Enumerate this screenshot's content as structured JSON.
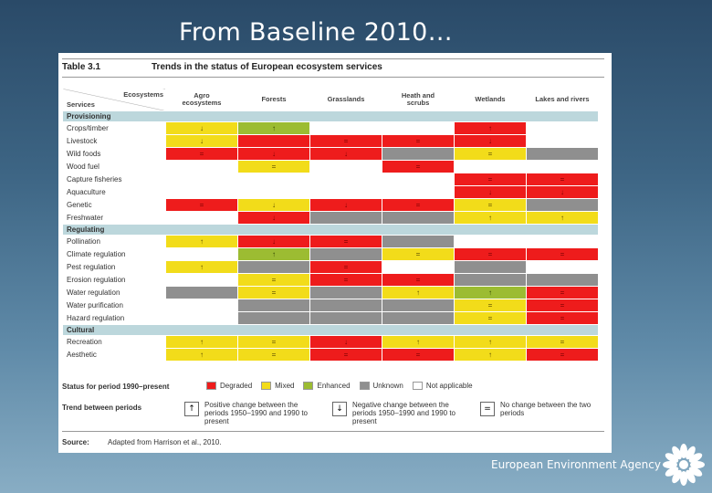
{
  "slide": {
    "title": "From Baseline 2010…",
    "agency": "European Environment Agency"
  },
  "table": {
    "number": "Table 3.1",
    "caption": "Trends in the status of European ecosystem services",
    "corner_top": "Ecosystems",
    "corner_bottom": "Services",
    "columns": [
      "Agro\necosystems",
      "Forests",
      "Grasslands",
      "Heath and\nscrubs",
      "Wetlands",
      "Lakes and rivers"
    ],
    "sections": [
      {
        "name": "Provisioning",
        "rows": [
          {
            "label": "Crops/timber",
            "cells": [
              [
                "m",
                "↓"
              ],
              [
                "e",
                "↑"
              ],
              [
                "n",
                ""
              ],
              [
                "n",
                ""
              ],
              [
                "d",
                "↑"
              ],
              [
                "n",
                ""
              ]
            ]
          },
          {
            "label": "Livestock",
            "cells": [
              [
                "m",
                "↓"
              ],
              [
                "d",
                ""
              ],
              [
                "d",
                "="
              ],
              [
                "d",
                "="
              ],
              [
                "d",
                "↓"
              ],
              [
                "n",
                ""
              ]
            ]
          },
          {
            "label": "Wild foods",
            "cells": [
              [
                "d",
                "="
              ],
              [
                "d",
                "↓"
              ],
              [
                "d",
                "↓"
              ],
              [
                "u",
                ""
              ],
              [
                "m",
                "="
              ],
              [
                "u",
                ""
              ]
            ]
          },
          {
            "label": "Wood fuel",
            "cells": [
              [
                "n",
                ""
              ],
              [
                "m",
                "="
              ],
              [
                "n",
                ""
              ],
              [
                "d",
                "="
              ],
              [
                "n",
                ""
              ],
              [
                "n",
                ""
              ]
            ]
          },
          {
            "label": "Capture fisheries",
            "cells": [
              [
                "n",
                ""
              ],
              [
                "n",
                ""
              ],
              [
                "n",
                ""
              ],
              [
                "n",
                ""
              ],
              [
                "d",
                "="
              ],
              [
                "d",
                "="
              ]
            ]
          },
          {
            "label": "Aquaculture",
            "cells": [
              [
                "n",
                ""
              ],
              [
                "n",
                ""
              ],
              [
                "n",
                ""
              ],
              [
                "n",
                ""
              ],
              [
                "d",
                "↓"
              ],
              [
                "d",
                "↓"
              ]
            ]
          },
          {
            "label": "Genetic",
            "cells": [
              [
                "d",
                "="
              ],
              [
                "m",
                "↓"
              ],
              [
                "d",
                "↓"
              ],
              [
                "d",
                "="
              ],
              [
                "m",
                "="
              ],
              [
                "u",
                ""
              ]
            ]
          },
          {
            "label": "Freshwater",
            "cells": [
              [
                "n",
                ""
              ],
              [
                "d",
                "↓"
              ],
              [
                "u",
                ""
              ],
              [
                "u",
                ""
              ],
              [
                "m",
                "↑"
              ],
              [
                "m",
                "↑"
              ]
            ]
          }
        ]
      },
      {
        "name": "Regulating",
        "rows": [
          {
            "label": "Pollination",
            "cells": [
              [
                "m",
                "↑"
              ],
              [
                "d",
                "↓"
              ],
              [
                "d",
                "="
              ],
              [
                "u",
                ""
              ],
              [
                "n",
                ""
              ],
              [
                "n",
                ""
              ]
            ]
          },
          {
            "label": "Climate regulation",
            "cells": [
              [
                "n",
                ""
              ],
              [
                "e",
                "↑"
              ],
              [
                "u",
                ""
              ],
              [
                "m",
                "="
              ],
              [
                "d",
                "="
              ],
              [
                "d",
                "="
              ]
            ]
          },
          {
            "label": "Pest regulation",
            "cells": [
              [
                "m",
                "↑"
              ],
              [
                "u",
                ""
              ],
              [
                "d",
                "="
              ],
              [
                "n",
                ""
              ],
              [
                "u",
                ""
              ],
              [
                "n",
                ""
              ]
            ]
          },
          {
            "label": "Erosion regulation",
            "cells": [
              [
                "n",
                ""
              ],
              [
                "m",
                "="
              ],
              [
                "d",
                "="
              ],
              [
                "d",
                "="
              ],
              [
                "u",
                ""
              ],
              [
                "u",
                ""
              ]
            ]
          },
          {
            "label": "Water regulation",
            "cells": [
              [
                "u",
                ""
              ],
              [
                "m",
                "="
              ],
              [
                "u",
                ""
              ],
              [
                "m",
                "↑"
              ],
              [
                "e",
                "↑"
              ],
              [
                "d",
                "="
              ]
            ]
          },
          {
            "label": "Water purification",
            "cells": [
              [
                "n",
                ""
              ],
              [
                "u",
                ""
              ],
              [
                "u",
                ""
              ],
              [
                "u",
                ""
              ],
              [
                "m",
                "="
              ],
              [
                "d",
                "="
              ]
            ]
          },
          {
            "label": "Hazard regulation",
            "cells": [
              [
                "n",
                ""
              ],
              [
                "u",
                ""
              ],
              [
                "u",
                ""
              ],
              [
                "u",
                ""
              ],
              [
                "m",
                "="
              ],
              [
                "d",
                "="
              ]
            ]
          }
        ]
      },
      {
        "name": "Cultural",
        "rows": [
          {
            "label": "Recreation",
            "cells": [
              [
                "m",
                "↑"
              ],
              [
                "m",
                "="
              ],
              [
                "d",
                "↓"
              ],
              [
                "m",
                "↑"
              ],
              [
                "m",
                "↑"
              ],
              [
                "m",
                "="
              ]
            ]
          },
          {
            "label": "Aesthetic",
            "cells": [
              [
                "m",
                "↑"
              ],
              [
                "m",
                "="
              ],
              [
                "d",
                "="
              ],
              [
                "d",
                "="
              ],
              [
                "m",
                "↑"
              ],
              [
                "d",
                "="
              ]
            ]
          }
        ]
      }
    ]
  },
  "legend": {
    "status_title": "Status for period 1990–present",
    "status": [
      {
        "key": "d",
        "label": "Degraded",
        "color": "#ee1c1c"
      },
      {
        "key": "m",
        "label": "Mixed",
        "color": "#f2dc1a"
      },
      {
        "key": "e",
        "label": "Enhanced",
        "color": "#9cbc32"
      },
      {
        "key": "u",
        "label": "Unknown",
        "color": "#8f8f8f"
      },
      {
        "key": "n",
        "label": "Not applicable",
        "color": "#ffffff"
      }
    ],
    "trend_title": "Trend between periods",
    "trends": [
      {
        "symbol": "↑",
        "text": "Positive change between the periods 1950–1990 and 1990 to present"
      },
      {
        "symbol": "↓",
        "text": "Negative change between the periods 1950–1990 and 1990 to present"
      },
      {
        "symbol": "=",
        "text": "No change between the two periods"
      }
    ],
    "source_label": "Source:",
    "source_text": "Adapted from Harrison et al., 2010."
  }
}
